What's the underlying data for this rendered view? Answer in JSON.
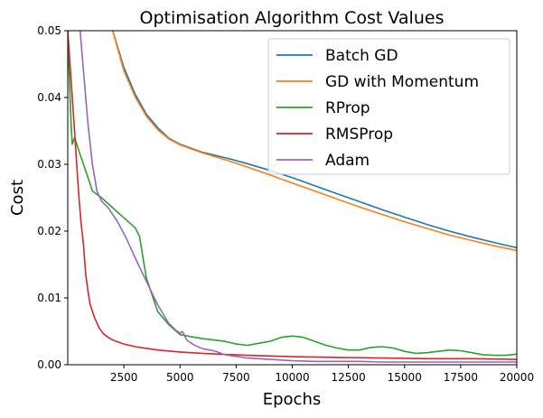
{
  "chart_data": {
    "type": "line",
    "title": "Optimisation Algorithm Cost Values",
    "xlabel": "Epochs",
    "ylabel": "Cost",
    "xlim": [
      0,
      20000
    ],
    "ylim": [
      0,
      0.05
    ],
    "xticks": [
      2500,
      5000,
      7500,
      10000,
      12500,
      15000,
      17500,
      20000
    ],
    "xtick_labels": [
      "2500",
      "5000",
      "7500",
      "10000",
      "12500",
      "15000",
      "17500",
      "20000"
    ],
    "yticks": [
      0,
      0.01,
      0.02,
      0.03,
      0.04,
      0.05
    ],
    "ytick_labels": [
      "0.00",
      "0.01",
      "0.02",
      "0.03",
      "0.04",
      "0.05"
    ],
    "grid": false,
    "legend_position": "top-right",
    "series": [
      {
        "name": "Batch GD",
        "color": "#1f77b4",
        "x": [
          2000,
          2500,
          3000,
          3500,
          4000,
          4500,
          5000,
          5500,
          6000,
          7000,
          8000,
          9000,
          10000,
          11000,
          12000,
          13000,
          14000,
          15000,
          16000,
          17000,
          18000,
          19000,
          20000
        ],
        "y": [
          0.05,
          0.0445,
          0.0405,
          0.0375,
          0.0355,
          0.0339,
          0.033,
          0.0324,
          0.0318,
          0.031,
          0.0301,
          0.0291,
          0.028,
          0.0268,
          0.0256,
          0.0244,
          0.0232,
          0.0221,
          0.021,
          0.02,
          0.0191,
          0.0183,
          0.0175
        ]
      },
      {
        "name": "GD with Momentum",
        "color": "#ff7f0e",
        "x": [
          2000,
          2500,
          3000,
          3500,
          4000,
          4500,
          5000,
          5500,
          6000,
          7000,
          8000,
          9000,
          10000,
          11000,
          12000,
          13000,
          14000,
          15000,
          16000,
          17000,
          18000,
          19000,
          20000
        ],
        "y": [
          0.05,
          0.044,
          0.0401,
          0.0372,
          0.0352,
          0.0338,
          0.0329,
          0.0323,
          0.0317,
          0.0307,
          0.0296,
          0.0284,
          0.0272,
          0.026,
          0.0248,
          0.0236,
          0.0225,
          0.0214,
          0.0204,
          0.0194,
          0.0186,
          0.0178,
          0.0171
        ]
      },
      {
        "name": "RProp",
        "color": "#2ca02c",
        "x": [
          0,
          50,
          150,
          200,
          300,
          500,
          700,
          900,
          1100,
          1500,
          2000,
          2500,
          3000,
          3200,
          3400,
          3500,
          3600,
          3700,
          3800,
          4000,
          4500,
          5000,
          5500,
          6000,
          7000,
          7500,
          8000,
          8500,
          9000,
          9500,
          10000,
          10500,
          11000,
          11500,
          12000,
          12500,
          13000,
          13500,
          14000,
          14500,
          15000,
          15500,
          16000,
          16500,
          17000,
          17500,
          18000,
          18500,
          19000,
          19500,
          20000
        ],
        "y": [
          0.05,
          0.045,
          0.036,
          0.033,
          0.034,
          0.032,
          0.03,
          0.028,
          0.026,
          0.025,
          0.0235,
          0.022,
          0.0205,
          0.0192,
          0.015,
          0.013,
          0.012,
          0.011,
          0.01,
          0.008,
          0.006,
          0.0045,
          0.0042,
          0.0039,
          0.0035,
          0.0031,
          0.0029,
          0.0032,
          0.0035,
          0.0041,
          0.0043,
          0.0041,
          0.0035,
          0.0029,
          0.0025,
          0.0022,
          0.0022,
          0.0026,
          0.0027,
          0.0025,
          0.002,
          0.0017,
          0.0018,
          0.002,
          0.0022,
          0.0021,
          0.0018,
          0.0015,
          0.0014,
          0.0014,
          0.0016
        ]
      },
      {
        "name": "RMSProp",
        "color": "#d62728",
        "x": [
          0,
          100,
          200,
          300,
          400,
          500,
          600,
          700,
          800,
          900,
          1000,
          1200,
          1400,
          1600,
          1800,
          2000,
          2500,
          3000,
          4000,
          5000,
          6000,
          8000,
          10000,
          12000,
          14000,
          16000,
          18000,
          20000
        ],
        "y": [
          0.05,
          0.045,
          0.04,
          0.035,
          0.03,
          0.025,
          0.021,
          0.018,
          0.0135,
          0.011,
          0.009,
          0.007,
          0.0055,
          0.0046,
          0.0041,
          0.0037,
          0.0031,
          0.0027,
          0.0022,
          0.0019,
          0.0017,
          0.0014,
          0.0012,
          0.0011,
          0.001,
          0.0009,
          0.0009,
          0.0008
        ]
      },
      {
        "name": "Adam",
        "color": "#9467bd",
        "x": [
          550,
          700,
          900,
          1100,
          1300,
          1500,
          1800,
          2200,
          2600,
          3000,
          3500,
          4000,
          4500,
          4800,
          5000,
          5100,
          5300,
          5600,
          6000,
          6500,
          7000,
          8000,
          9000,
          10000,
          11000,
          12000,
          13000,
          14000,
          16000,
          18000,
          20000
        ],
        "y": [
          0.05,
          0.044,
          0.036,
          0.03,
          0.026,
          0.0245,
          0.0235,
          0.0215,
          0.019,
          0.016,
          0.0125,
          0.009,
          0.0062,
          0.0052,
          0.0047,
          0.005,
          0.0037,
          0.003,
          0.0024,
          0.0021,
          0.0015,
          0.001,
          0.0008,
          0.0006,
          0.0005,
          0.0005,
          0.0005,
          0.0004,
          0.0004,
          0.0004,
          0.0004
        ]
      }
    ]
  }
}
